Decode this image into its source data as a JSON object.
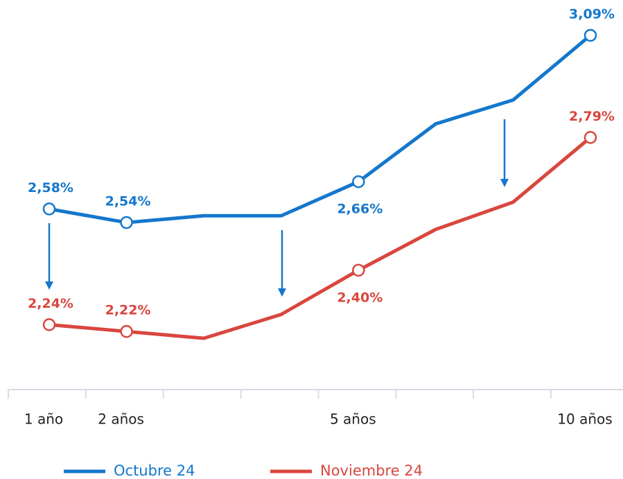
{
  "chart_data": {
    "type": "line",
    "categories": [
      "1 año",
      "2 años",
      null,
      null,
      "5 años",
      null,
      null,
      "10 años"
    ],
    "series": [
      {
        "name": "Octubre 24",
        "color": "#1477cc",
        "values": [
          2.58,
          2.54,
          2.56,
          2.56,
          2.66,
          2.83,
          2.9,
          3.09
        ],
        "value_labels": [
          "2,58%",
          "2,54%",
          null,
          null,
          "2,66%",
          null,
          null,
          "3,09%"
        ]
      },
      {
        "name": "Noviembre 24",
        "color": "#d9463e",
        "values": [
          2.24,
          2.22,
          2.2,
          2.27,
          2.4,
          2.52,
          2.6,
          2.79
        ],
        "value_labels": [
          "2,24%",
          "2,22%",
          null,
          null,
          "2,40%",
          null,
          null,
          "2,79%"
        ]
      }
    ]
  }
}
